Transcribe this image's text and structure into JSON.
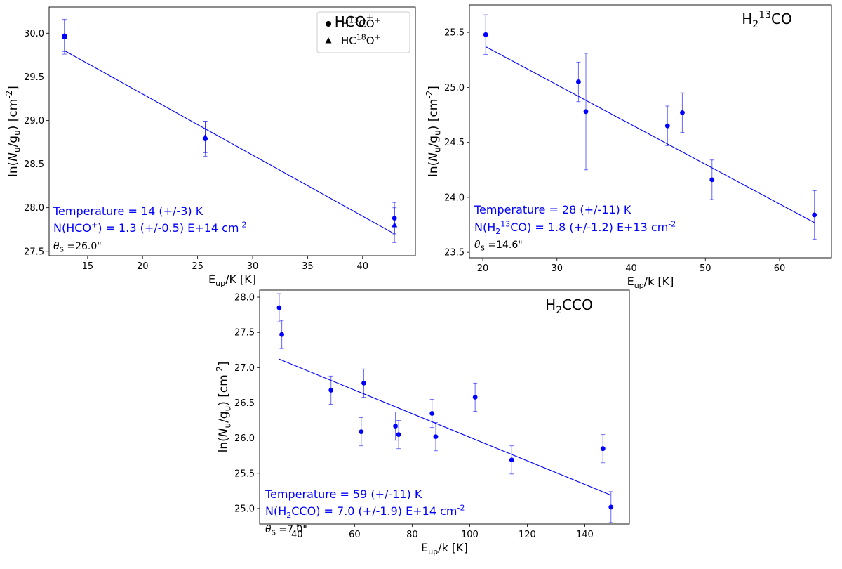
{
  "figure": {
    "colors": {
      "data": "#0000ff",
      "frame": "#000000",
      "note": "#000000",
      "background": "#ffffff"
    }
  },
  "chart_data": [
    {
      "type": "scatter",
      "title": "HCO⁺",
      "xlabel": "E_up/K [K]",
      "ylabel": "ln(N_u/g_u) [cm⁻²]",
      "xlim": [
        11.5,
        44.8
      ],
      "ylim": [
        27.45,
        30.3
      ],
      "xticks": [
        15,
        20,
        25,
        30,
        35,
        40
      ],
      "yticks": [
        27.5,
        28.0,
        28.5,
        29.0,
        29.5,
        30.0
      ],
      "ytick_decimals": 1,
      "grid": false,
      "legend": {
        "placement": "top-right",
        "entries": [
          {
            "marker": "circle",
            "label": "H¹³CO⁺"
          },
          {
            "marker": "triangle",
            "label": "HC¹⁸O⁺"
          }
        ]
      },
      "series": [
        {
          "name": "H¹³CO⁺",
          "marker": "circle",
          "points": [
            {
              "x": 12.9,
              "y": 29.97,
              "err": 0.18
            },
            {
              "x": 25.7,
              "y": 28.79,
              "err": 0.2
            },
            {
              "x": 42.9,
              "y": 27.88,
              "err": 0.18
            }
          ]
        },
        {
          "name": "HC¹⁸O⁺",
          "marker": "triangle",
          "points": [
            {
              "x": 12.9,
              "y": 29.96,
              "err": 0.2
            },
            {
              "x": 25.7,
              "y": 28.81,
              "err": 0.18
            },
            {
              "x": 42.9,
              "y": 27.8,
              "err": 0.2
            }
          ]
        }
      ],
      "fit": {
        "x": [
          12.9,
          42.9
        ],
        "y": [
          29.8,
          27.7
        ]
      },
      "annotations": [
        {
          "id": "temperature",
          "text": "Temperature = 14 (+/-3) K"
        },
        {
          "id": "column",
          "text": "N(HCO⁺) = 1.3 (+/-0.5) E+14 cm⁻²"
        },
        {
          "id": "size",
          "text": "θ_S =26.0\""
        }
      ]
    },
    {
      "type": "scatter",
      "title": "H₂¹³CO",
      "xlabel": "E_up/k [K]",
      "ylabel": "ln(N_u/g_u) [cm⁻²]",
      "xlim": [
        18.2,
        67
      ],
      "ylim": [
        23.45,
        25.75
      ],
      "xticks": [
        20,
        30,
        40,
        50,
        60
      ],
      "yticks": [
        23.5,
        24.0,
        24.5,
        25.0,
        25.5
      ],
      "ytick_decimals": 1,
      "grid": false,
      "series": [
        {
          "name": "",
          "marker": "circle",
          "points": [
            {
              "x": 20.4,
              "y": 25.48,
              "err": 0.18
            },
            {
              "x": 32.9,
              "y": 25.05,
              "err": 0.18
            },
            {
              "x": 33.9,
              "y": 24.78,
              "err": 0.53
            },
            {
              "x": 44.9,
              "y": 24.65,
              "err": 0.18
            },
            {
              "x": 46.9,
              "y": 24.77,
              "err": 0.18
            },
            {
              "x": 50.9,
              "y": 24.16,
              "err": 0.18
            },
            {
              "x": 64.7,
              "y": 23.84,
              "err": 0.22
            }
          ]
        }
      ],
      "fit": {
        "x": [
          20.4,
          64.7
        ],
        "y": [
          25.37,
          23.77
        ]
      },
      "annotations": [
        {
          "id": "temperature",
          "text": "Temperature = 28 (+/-11) K"
        },
        {
          "id": "column",
          "text": "N(H₂¹³CO) = 1.8 (+/-1.2) E+13 cm⁻²"
        },
        {
          "id": "size",
          "text": "θ_S =14.6\""
        }
      ]
    },
    {
      "type": "scatter",
      "title": "H₂CCO",
      "xlabel": "E_up/k [K]",
      "ylabel": "ln(N_u/g_u) [cm⁻²]",
      "xlim": [
        27,
        155.5
      ],
      "ylim": [
        24.78,
        28.1
      ],
      "xticks": [
        40,
        60,
        80,
        100,
        120,
        140
      ],
      "yticks": [
        25.0,
        25.5,
        26.0,
        26.5,
        27.0,
        27.5,
        28.0
      ],
      "ytick_decimals": 1,
      "grid": false,
      "series": [
        {
          "name": "",
          "marker": "circle",
          "points": [
            {
              "x": 33.8,
              "y": 27.85,
              "err": 0.2
            },
            {
              "x": 34.7,
              "y": 27.47,
              "err": 0.2
            },
            {
              "x": 51.8,
              "y": 26.68,
              "err": 0.2
            },
            {
              "x": 62.3,
              "y": 26.09,
              "err": 0.2
            },
            {
              "x": 63.2,
              "y": 26.78,
              "err": 0.2
            },
            {
              "x": 74.2,
              "y": 26.17,
              "err": 0.2
            },
            {
              "x": 75.3,
              "y": 26.05,
              "err": 0.2
            },
            {
              "x": 86.9,
              "y": 26.35,
              "err": 0.2
            },
            {
              "x": 88.2,
              "y": 26.02,
              "err": 0.2
            },
            {
              "x": 101.9,
              "y": 26.58,
              "err": 0.2
            },
            {
              "x": 114.6,
              "y": 25.69,
              "err": 0.2
            },
            {
              "x": 146.3,
              "y": 25.85,
              "err": 0.2
            },
            {
              "x": 149.1,
              "y": 25.02,
              "err": 0.22
            }
          ]
        }
      ],
      "fit": {
        "x": [
          33.8,
          149.1
        ],
        "y": [
          27.12,
          25.19
        ]
      },
      "annotations": [
        {
          "id": "temperature",
          "text": "Temperature = 59 (+/-11) K"
        },
        {
          "id": "column",
          "text": "N(H₂CCO) = 7.0 (+/-1.9) E+14 cm⁻²"
        },
        {
          "id": "size",
          "text": "θ_S =7.0\""
        }
      ]
    }
  ]
}
